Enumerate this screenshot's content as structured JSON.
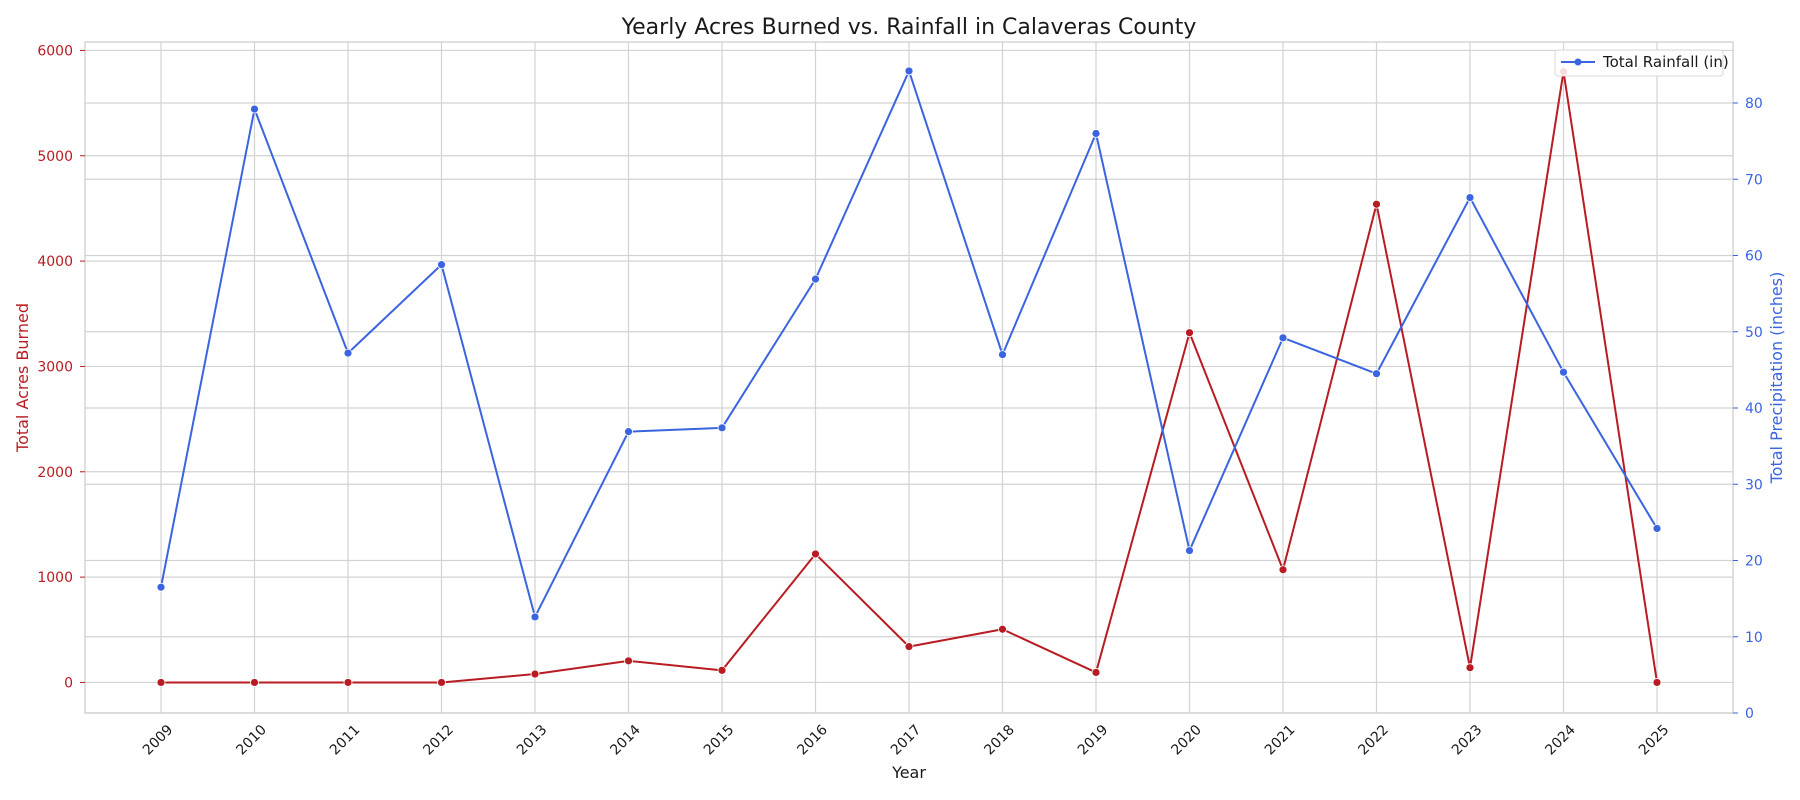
{
  "chart_data": {
    "type": "line",
    "title": "Yearly Acres Burned vs. Rainfall in Calaveras County",
    "xlabel": "Year",
    "ylabel_left": "Total Acres Burned",
    "ylabel_right": "Total Precipitation (inches)",
    "categories": [
      "2009",
      "2010",
      "2011",
      "2012",
      "2013",
      "2014",
      "2015",
      "2016",
      "2017",
      "2018",
      "2019",
      "2020",
      "2021",
      "2022",
      "2023",
      "2024",
      "2025"
    ],
    "ylim_left": [
      -290,
      6080
    ],
    "yticks_left": [
      0,
      1000,
      2000,
      3000,
      4000,
      5000,
      6000
    ],
    "ylim_right": [
      0,
      88
    ],
    "yticks_right": [
      0,
      10,
      20,
      30,
      40,
      50,
      60,
      70,
      80
    ],
    "grid": true,
    "legend_position": "top-right",
    "series": [
      {
        "name": "",
        "axis": "left",
        "color": "#b81c22",
        "values": [
          0,
          0,
          0,
          0,
          80,
          205,
          115,
          1220,
          340,
          505,
          95,
          3320,
          1070,
          4540,
          140,
          5800,
          0
        ]
      },
      {
        "name": "Total Rainfall (in)",
        "axis": "right",
        "color": "#3a64e0",
        "values": [
          16.5,
          79.2,
          47.2,
          58.8,
          12.6,
          36.9,
          37.4,
          56.9,
          84.2,
          47.0,
          76.0,
          21.3,
          49.2,
          44.5,
          67.6,
          44.7,
          24.2
        ]
      }
    ]
  }
}
